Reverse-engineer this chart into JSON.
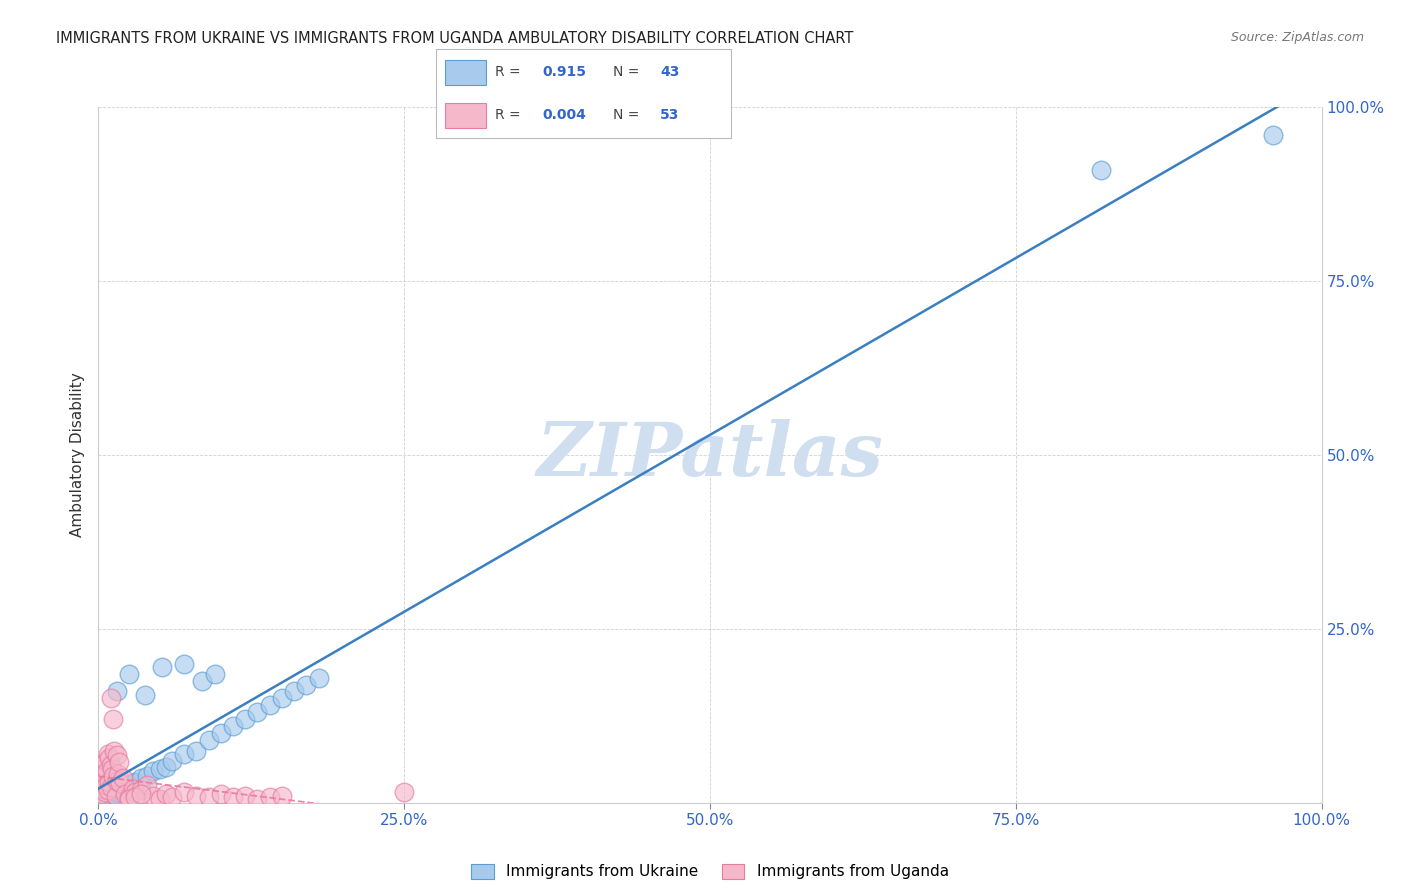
{
  "title": "IMMIGRANTS FROM UKRAINE VS IMMIGRANTS FROM UGANDA AMBULATORY DISABILITY CORRELATION CHART",
  "source": "Source: ZipAtlas.com",
  "ylabel": "Ambulatory Disability",
  "x_tick_labels": [
    "0.0%",
    "25.0%",
    "50.0%",
    "75.0%",
    "100.0%"
  ],
  "x_tick_vals": [
    0,
    25,
    50,
    75,
    100
  ],
  "y_tick_labels": [
    "100.0%",
    "75.0%",
    "50.0%",
    "25.0%"
  ],
  "y_tick_vals": [
    100,
    75,
    50,
    25
  ],
  "ukraine_color": "#a8caec",
  "ukraine_edge_color": "#5a9fd4",
  "uganda_color": "#f5b8cb",
  "uganda_edge_color": "#e87ba0",
  "ukraine_R": "0.915",
  "ukraine_N": "43",
  "uganda_R": "0.004",
  "uganda_N": "53",
  "ukraine_line_color": "#3a7fc1",
  "uganda_line_color": "#e87ba0",
  "watermark": "ZIPatlas",
  "watermark_color": "#d0dff0",
  "background_color": "#ffffff",
  "ukraine_scatter_x": [
    0.3,
    0.5,
    0.6,
    0.8,
    1.0,
    1.1,
    1.2,
    1.3,
    1.5,
    1.6,
    1.8,
    2.0,
    2.2,
    2.5,
    2.8,
    3.0,
    3.5,
    4.0,
    4.5,
    5.0,
    5.5,
    6.0,
    7.0,
    8.0,
    9.0,
    10.0,
    11.0,
    12.0,
    13.0,
    14.0,
    15.0,
    16.0,
    17.0,
    18.0,
    7.0,
    8.5,
    9.5,
    1.5,
    2.5,
    3.8,
    5.2,
    82.0,
    96.0
  ],
  "ukraine_scatter_y": [
    0.2,
    0.4,
    0.5,
    0.8,
    1.0,
    1.0,
    1.2,
    1.3,
    1.4,
    1.5,
    1.8,
    2.0,
    2.2,
    2.5,
    2.8,
    3.0,
    3.5,
    3.8,
    4.5,
    4.8,
    5.2,
    6.0,
    7.0,
    7.5,
    9.0,
    10.0,
    11.0,
    12.0,
    13.0,
    14.0,
    15.0,
    16.0,
    17.0,
    18.0,
    20.0,
    17.5,
    18.5,
    16.0,
    18.5,
    15.5,
    19.5,
    91.0,
    96.0
  ],
  "uganda_scatter_x": [
    0.1,
    0.2,
    0.2,
    0.3,
    0.3,
    0.4,
    0.4,
    0.5,
    0.5,
    0.6,
    0.6,
    0.7,
    0.8,
    0.8,
    0.9,
    0.9,
    1.0,
    1.0,
    1.1,
    1.2,
    1.3,
    1.4,
    1.5,
    1.5,
    1.6,
    1.7,
    1.8,
    2.0,
    2.2,
    2.5,
    2.8,
    3.0,
    3.5,
    4.0,
    4.5,
    5.0,
    5.5,
    6.0,
    7.0,
    8.0,
    9.0,
    10.0,
    11.0,
    12.0,
    13.0,
    14.0,
    15.0,
    1.0,
    1.2,
    2.5,
    3.0,
    3.5,
    25.0
  ],
  "uganda_scatter_y": [
    1.5,
    2.5,
    0.8,
    3.5,
    1.2,
    4.0,
    2.0,
    5.0,
    1.5,
    6.0,
    2.5,
    4.5,
    7.0,
    1.8,
    3.0,
    6.5,
    5.5,
    2.2,
    4.8,
    3.8,
    7.5,
    1.0,
    6.8,
    3.2,
    4.2,
    5.8,
    2.8,
    3.5,
    1.2,
    0.8,
    2.0,
    1.5,
    1.8,
    2.5,
    1.0,
    0.5,
    1.2,
    0.8,
    1.5,
    1.0,
    0.8,
    1.2,
    0.8,
    1.0,
    0.5,
    0.8,
    1.0,
    15.0,
    12.0,
    0.5,
    0.8,
    1.2,
    1.5
  ]
}
